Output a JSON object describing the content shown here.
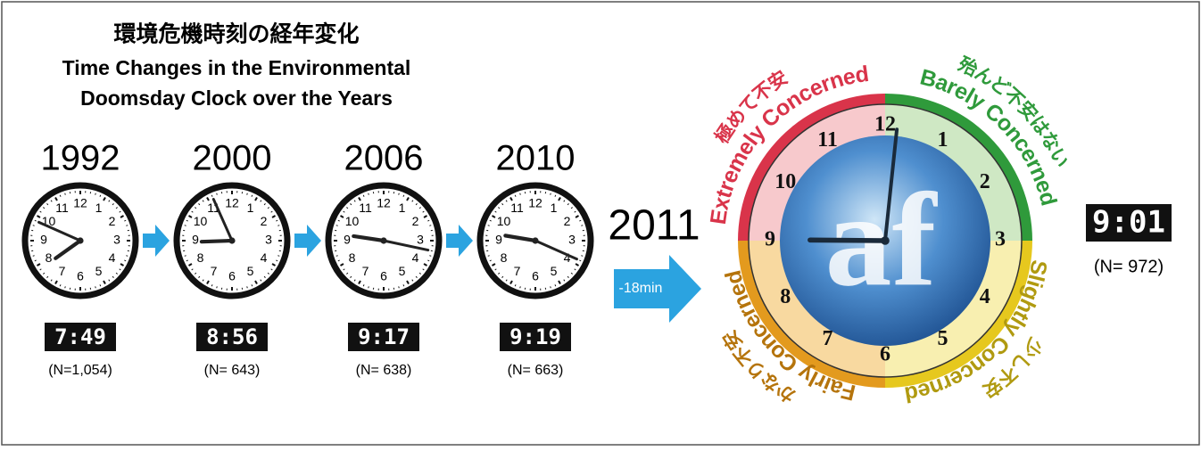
{
  "header": {
    "title_jp": "環境危機時刻の経年変化",
    "title_en_1": "Time Changes in the Environmental",
    "title_en_2": "Doomsday Clock over the Years"
  },
  "dial_numbers": [
    "12",
    "1",
    "2",
    "3",
    "4",
    "5",
    "6",
    "7",
    "8",
    "9",
    "10",
    "11"
  ],
  "clocks": [
    {
      "year": "1992",
      "time": "7:49",
      "n": "(N=1,054)"
    },
    {
      "year": "2000",
      "time": "8:56",
      "n": "(N= 643)"
    },
    {
      "year": "2006",
      "time": "9:17",
      "n": "(N= 638)"
    },
    {
      "year": "2010",
      "time": "9:19",
      "n": "(N= 663)"
    }
  ],
  "current": {
    "year": "2011",
    "change": "-18min",
    "time": "9:01",
    "n": "(N= 972)",
    "logo": "af"
  },
  "zones": [
    {
      "jp": "極めて不安",
      "en": "Extremely Concerned",
      "color": "#d9344a",
      "tint": "#f7c9cc"
    },
    {
      "jp": "殆んど不安はない",
      "en": "Barely Concerned",
      "color": "#2f9a3b",
      "tint": "#cfe8c4"
    },
    {
      "jp": "少し不安",
      "en": "Slightly Concerned",
      "color": "#e6c81e",
      "tint": "#f8efb0"
    },
    {
      "jp": "かなり不安",
      "en": "Fairly Concerned",
      "color": "#e39a1e",
      "tint": "#f8d9a0"
    }
  ]
}
